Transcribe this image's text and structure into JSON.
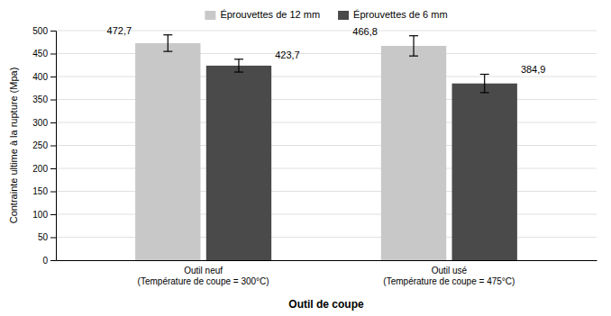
{
  "chart_data": {
    "type": "bar",
    "categories": [
      "Outil neuf\n(Température de coupe = 300°C)",
      "Outil usé\n(Température de coupe = 475°C)"
    ],
    "series": [
      {
        "name": "Éprouvettes de 12 mm",
        "color": "#c8c8c8",
        "values": [
          472.7,
          466.8
        ],
        "errors": [
          18,
          22
        ],
        "value_labels": [
          "472,7",
          "466,8"
        ]
      },
      {
        "name": "Éprouvettes de 6 mm",
        "color": "#4a4a4a",
        "values": [
          423.7,
          384.9
        ],
        "errors": [
          14,
          20
        ],
        "value_labels": [
          "423,7",
          "384,9"
        ]
      }
    ],
    "xlabel": "Outil de coupe",
    "ylabel": "Contrainte ultime à la rupture (Mpa)",
    "ylim": [
      0,
      500
    ],
    "yticks": [
      0,
      50,
      100,
      150,
      200,
      250,
      300,
      350,
      400,
      450,
      500
    ],
    "grid": true,
    "legend": "top"
  }
}
